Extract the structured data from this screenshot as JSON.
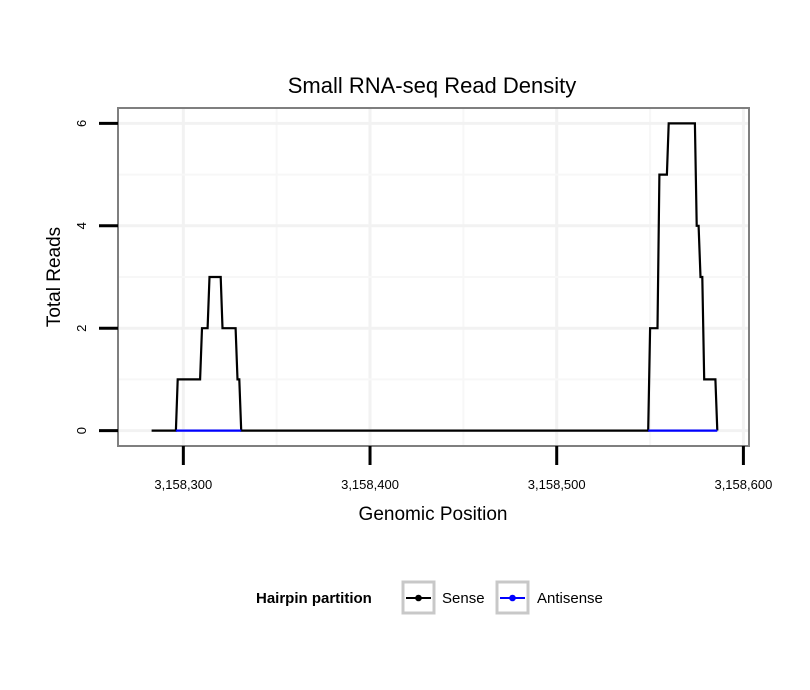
{
  "chart_data": {
    "type": "line",
    "title": "Small RNA-seq Read Density",
    "xlabel": "Genomic Position",
    "ylabel": "Total Reads",
    "xlim": [
      3158265,
      3158603
    ],
    "ylim": [
      -0.3,
      6.3
    ],
    "x_ticks": [
      3158300,
      3158400,
      3158500,
      3158600
    ],
    "x_tick_labels": [
      "3,158,300",
      "3,158,400",
      "3,158,500",
      "3,158,600"
    ],
    "y_ticks": [
      0,
      2,
      4,
      6
    ],
    "y_tick_labels": [
      "0",
      "2",
      "4",
      "6"
    ],
    "grid": true,
    "legend_title": "Hairpin partition",
    "legend_position": "bottom",
    "series": [
      {
        "name": "Sense",
        "color": "#000000",
        "x": [
          3158283,
          3158296,
          3158297,
          3158306,
          3158307,
          3158309,
          3158310,
          3158313,
          3158314,
          3158320,
          3158321,
          3158328,
          3158329,
          3158330,
          3158331,
          3158332,
          3158333,
          3158549,
          3158550,
          3158554,
          3158555,
          3158559,
          3158560,
          3158563,
          3158564,
          3158574,
          3158575,
          3158576,
          3158577,
          3158578,
          3158579,
          3158585,
          3158586
        ],
        "y": [
          0,
          0,
          1,
          1,
          1,
          1,
          2,
          2,
          3,
          3,
          2,
          2,
          1,
          1,
          0,
          0,
          0,
          0,
          2,
          2,
          5,
          5,
          6,
          6,
          6,
          6,
          4,
          4,
          3,
          3,
          1,
          1,
          0
        ]
      },
      {
        "name": "Antisense",
        "color": "#0000ff",
        "x": [
          3158296,
          3158331,
          3158549,
          3158586
        ],
        "y": [
          0,
          0,
          0,
          0
        ],
        "segments": [
          [
            0,
            1
          ],
          [
            2,
            3
          ]
        ]
      }
    ]
  }
}
